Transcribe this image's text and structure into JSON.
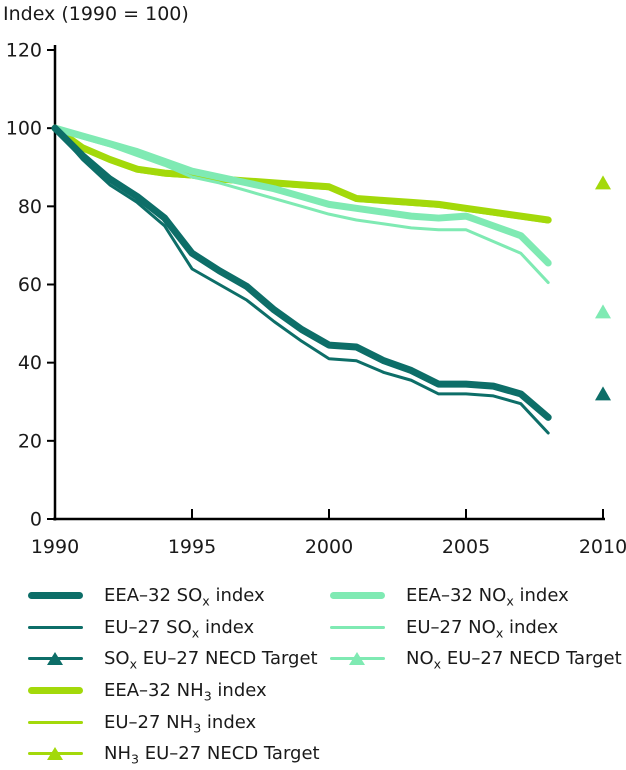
{
  "title": "Index (1990 = 100)",
  "colors": {
    "sox": "#0d6e68",
    "nox": "#7feab3",
    "nh3": "#a3d90a",
    "axis": "#000000",
    "text": "#1a1a1a"
  },
  "chart_data": {
    "type": "line",
    "title": "Index (1990 = 100)",
    "xlabel": "",
    "ylabel": "Index (1990 = 100)",
    "xlim": [
      1990,
      2010
    ],
    "ylim": [
      0,
      120
    ],
    "grid": false,
    "legend_position": "bottom",
    "xticks": [
      1990,
      1995,
      2000,
      2005,
      2010
    ],
    "yticks": [
      0,
      20,
      40,
      60,
      80,
      100,
      120
    ],
    "x": [
      1990,
      1991,
      1992,
      1993,
      1994,
      1995,
      1996,
      1997,
      1998,
      1999,
      2000,
      2001,
      2002,
      2003,
      2004,
      2005,
      2006,
      2007,
      2008
    ],
    "series": [
      {
        "name": "EU-27 NH3 index",
        "color": "#a3d90a",
        "width": 3,
        "values": [
          100,
          94.5,
          91.5,
          89,
          88,
          87.5,
          86.5,
          86,
          85.5,
          85,
          84.5,
          81.5,
          81,
          80.5,
          80,
          79,
          78,
          77,
          76
        ]
      },
      {
        "name": "EEA-32 NH3 index",
        "color": "#a3d90a",
        "width": 7,
        "values": [
          100,
          95,
          92,
          89.5,
          88.5,
          88,
          87,
          86.5,
          86,
          85.5,
          85,
          82,
          81.5,
          81,
          80.5,
          79.5,
          78.5,
          77.5,
          76.5
        ]
      },
      {
        "name": "EU-27 NOx index",
        "color": "#7feab3",
        "width": 3,
        "values": [
          100,
          97.5,
          95.5,
          93,
          90.5,
          87.5,
          86,
          84,
          82,
          80,
          78,
          76.5,
          75.5,
          74.5,
          74,
          74,
          71,
          68,
          60.5
        ]
      },
      {
        "name": "EEA-32 NOx index",
        "color": "#7feab3",
        "width": 7,
        "values": [
          100,
          98,
          96,
          94,
          91.5,
          89,
          87.5,
          86,
          84.5,
          82.5,
          80.5,
          79.5,
          78.5,
          77.5,
          77,
          77.5,
          75,
          72.5,
          65.5
        ]
      },
      {
        "name": "EU-27 SOx index",
        "color": "#0d6e68",
        "width": 3,
        "values": [
          100,
          92,
          85.5,
          81,
          75,
          64,
          60,
          56,
          50.5,
          45.5,
          41,
          40.5,
          37.5,
          35.5,
          32,
          32,
          31.5,
          29.5,
          22
        ]
      },
      {
        "name": "EEA-32 SOx index",
        "color": "#0d6e68",
        "width": 7,
        "values": [
          100,
          93,
          87,
          82.5,
          77,
          68,
          63.5,
          59.5,
          53.5,
          48.5,
          44.5,
          44,
          40.5,
          38,
          34.5,
          34.5,
          34,
          32,
          26
        ]
      }
    ],
    "targets": [
      {
        "name": "NH3 EU-27 NECD Target",
        "color": "#a3d90a",
        "x": 2010,
        "value": 86
      },
      {
        "name": "NOx EU-27 NECD Target",
        "color": "#7feab3",
        "x": 2010,
        "value": 53
      },
      {
        "name": "SOx EU-27 NECD Target",
        "color": "#0d6e68",
        "x": 2010,
        "value": 32
      }
    ]
  },
  "legend": {
    "columns": [
      {
        "items": [
          {
            "swatch": "thick-line",
            "color": "#0d6e68",
            "name": "eea32-sox-index",
            "label": [
              {
                "t": "EEA–32 SO"
              },
              {
                "t": "x",
                "sub": true
              },
              {
                "t": " index"
              }
            ]
          },
          {
            "swatch": "thin-line",
            "color": "#0d6e68",
            "name": "eu27-sox-index",
            "label": [
              {
                "t": "EU–27 SO"
              },
              {
                "t": "x",
                "sub": true
              },
              {
                "t": " index"
              }
            ]
          },
          {
            "swatch": "triangle",
            "color": "#0d6e68",
            "name": "sox-necd-target",
            "label": [
              {
                "t": "SO"
              },
              {
                "t": "x",
                "sub": true
              },
              {
                "t": " EU–27 NECD Target"
              }
            ]
          },
          {
            "swatch": "thick-line",
            "color": "#a3d90a",
            "name": "eea32-nh3-index",
            "label": [
              {
                "t": "EEA–32 NH"
              },
              {
                "t": "3",
                "sub": true
              },
              {
                "t": " index"
              }
            ]
          },
          {
            "swatch": "thin-line",
            "color": "#a3d90a",
            "name": "eu27-nh3-index",
            "label": [
              {
                "t": "EU–27 NH"
              },
              {
                "t": "3",
                "sub": true
              },
              {
                "t": " index"
              }
            ]
          },
          {
            "swatch": "triangle",
            "color": "#a3d90a",
            "name": "nh3-necd-target",
            "label": [
              {
                "t": "NH"
              },
              {
                "t": "3",
                "sub": true
              },
              {
                "t": " EU–27 NECD Target"
              }
            ]
          }
        ]
      },
      {
        "items": [
          {
            "swatch": "thick-line",
            "color": "#7feab3",
            "name": "eea32-nox-index",
            "label": [
              {
                "t": "EEA–32 NO"
              },
              {
                "t": "x",
                "sub": true
              },
              {
                "t": " index"
              }
            ]
          },
          {
            "swatch": "thin-line",
            "color": "#7feab3",
            "name": "eu27-nox-index",
            "label": [
              {
                "t": "EU–27 NO"
              },
              {
                "t": "x",
                "sub": true
              },
              {
                "t": " index"
              }
            ]
          },
          {
            "swatch": "triangle",
            "color": "#7feab3",
            "name": "nox-necd-target",
            "label": [
              {
                "t": "NO"
              },
              {
                "t": "x",
                "sub": true
              },
              {
                "t": " EU–27 NECD Target"
              }
            ]
          }
        ]
      }
    ]
  }
}
